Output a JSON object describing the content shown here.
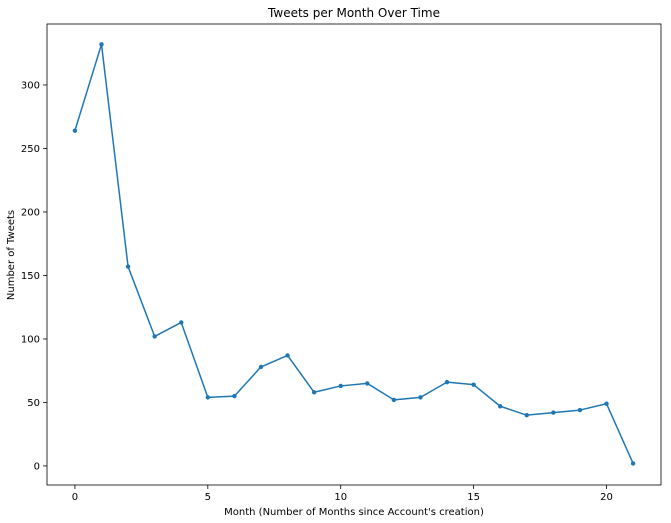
{
  "chart_data": {
    "type": "line",
    "title": "Tweets per Month Over Time",
    "xlabel": "Month (Number of Months since Account's creation)",
    "ylabel": "Number of Tweets",
    "xlim": [
      -1.05,
      22.05
    ],
    "ylim": [
      -15,
      348
    ],
    "x_ticks": [
      0,
      5,
      10,
      15,
      20
    ],
    "y_ticks": [
      0,
      50,
      100,
      150,
      200,
      250,
      300
    ],
    "grid": false,
    "legend": "none",
    "series": [
      {
        "color": "#1f77b4",
        "marker": "dot",
        "x": [
          0,
          1,
          2,
          3,
          4,
          5,
          6,
          7,
          8,
          9,
          10,
          11,
          12,
          13,
          14,
          15,
          16,
          17,
          18,
          19,
          20,
          21
        ],
        "y": [
          264,
          332,
          157,
          102,
          113,
          54,
          55,
          78,
          87,
          58,
          63,
          65,
          52,
          54,
          66,
          64,
          47,
          40,
          42,
          44,
          49,
          2
        ]
      }
    ]
  }
}
